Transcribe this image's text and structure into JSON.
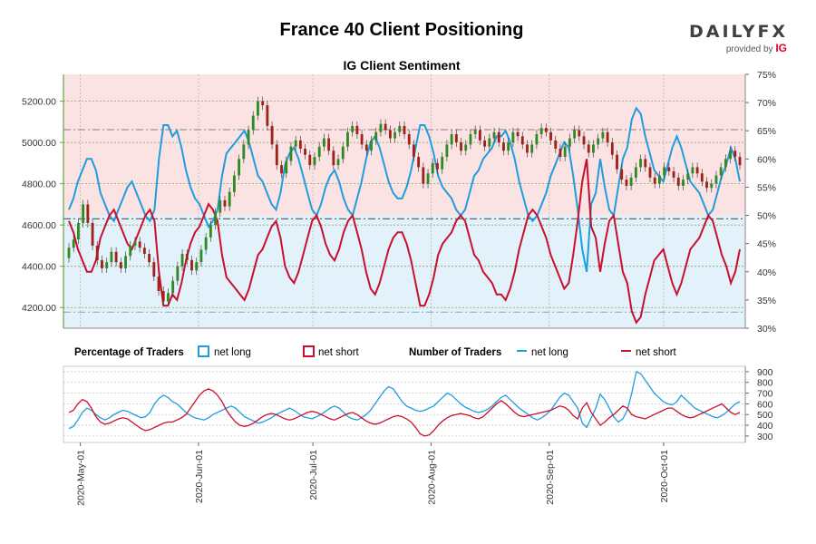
{
  "title": "France 40 Client Positioning",
  "subtitle": "IG Client Sentiment",
  "brand": {
    "name": "DAILYFX",
    "tagline": "provided by",
    "provider": "IG"
  },
  "colors": {
    "long": "#1e9de0",
    "short": "#c8102e",
    "long_fill": "#e3f1fa",
    "short_fill": "#fbe3e3",
    "candle_up": "#2e8b22",
    "candle_down": "#a0211c",
    "grid": "#7fae5a",
    "axis": "#6ca04a"
  },
  "legend": {
    "pct_label": "Percentage of Traders",
    "pct_long": "net long",
    "pct_short": "net short",
    "num_label": "Number of Traders",
    "num_long": "net long",
    "num_short": "net short"
  },
  "chart_data": {
    "type": "line",
    "x_start": "2020-04-28",
    "x_end": "2020-10-21",
    "x_ticks": [
      "2020-May-01",
      "2020-Jun-01",
      "2020-Jul-01",
      "2020-Aug-01",
      "2020-Sep-01",
      "2020-Oct-01"
    ],
    "price": {
      "ylim": [
        4100,
        5330
      ],
      "ticks": [
        "5200.00",
        "5000.00",
        "4800.00",
        "4600.00",
        "4400.00",
        "4200.00"
      ],
      "tick_values": [
        5200,
        5000,
        4800,
        4600,
        4400,
        4200
      ],
      "level_line": 4630,
      "upper_line": 5062,
      "lower_line": 4178
    },
    "sentiment": {
      "ylim": [
        30,
        75
      ],
      "ticks": [
        "75%",
        "70%",
        "65%",
        "60%",
        "55%",
        "50%",
        "45%",
        "40%",
        "35%",
        "30%"
      ],
      "tick_values": [
        75,
        70,
        65,
        60,
        55,
        50,
        45,
        40,
        35,
        30
      ]
    },
    "traders": {
      "ylim": [
        240,
        950
      ],
      "ticks": [
        "900",
        "800",
        "700",
        "600",
        "500",
        "400",
        "300"
      ],
      "tick_values": [
        900,
        800,
        700,
        600,
        500,
        400,
        300
      ]
    },
    "candles": [
      [
        4440,
        4490
      ],
      [
        4490,
        4530
      ],
      [
        4530,
        4610
      ],
      [
        4610,
        4700
      ],
      [
        4700,
        4610
      ],
      [
        4610,
        4500
      ],
      [
        4500,
        4430
      ],
      [
        4430,
        4390
      ],
      [
        4390,
        4420
      ],
      [
        4420,
        4470
      ],
      [
        4470,
        4420
      ],
      [
        4420,
        4390
      ],
      [
        4390,
        4450
      ],
      [
        4450,
        4500
      ],
      [
        4500,
        4520
      ],
      [
        4520,
        4490
      ],
      [
        4490,
        4460
      ],
      [
        4460,
        4420
      ],
      [
        4420,
        4350
      ],
      [
        4350,
        4280
      ],
      [
        4280,
        4230
      ],
      [
        4230,
        4270
      ],
      [
        4270,
        4330
      ],
      [
        4330,
        4400
      ],
      [
        4400,
        4460
      ],
      [
        4460,
        4430
      ],
      [
        4430,
        4380
      ],
      [
        4380,
        4420
      ],
      [
        4420,
        4480
      ],
      [
        4480,
        4540
      ],
      [
        4540,
        4600
      ],
      [
        4600,
        4660
      ],
      [
        4660,
        4720
      ],
      [
        4720,
        4690
      ],
      [
        4690,
        4760
      ],
      [
        4760,
        4840
      ],
      [
        4840,
        4920
      ],
      [
        4920,
        4990
      ],
      [
        4990,
        5060
      ],
      [
        5060,
        5130
      ],
      [
        5130,
        5200
      ],
      [
        5200,
        5180
      ],
      [
        5180,
        5080
      ],
      [
        5080,
        4990
      ],
      [
        4990,
        4890
      ],
      [
        4890,
        4850
      ],
      [
        4850,
        4910
      ],
      [
        4910,
        4980
      ],
      [
        4980,
        5010
      ],
      [
        5010,
        4970
      ],
      [
        4970,
        4940
      ],
      [
        4940,
        4890
      ],
      [
        4890,
        4930
      ],
      [
        4930,
        4980
      ],
      [
        4980,
        5020
      ],
      [
        5020,
        4960
      ],
      [
        4960,
        4890
      ],
      [
        4890,
        4920
      ],
      [
        4920,
        4980
      ],
      [
        4980,
        5050
      ],
      [
        5050,
        5080
      ],
      [
        5080,
        5040
      ],
      [
        5040,
        4990
      ],
      [
        4990,
        4960
      ],
      [
        4960,
        5010
      ],
      [
        5010,
        5050
      ],
      [
        5050,
        5090
      ],
      [
        5090,
        5060
      ],
      [
        5060,
        5020
      ],
      [
        5020,
        5050
      ],
      [
        5050,
        5080
      ],
      [
        5080,
        5040
      ],
      [
        5040,
        4990
      ],
      [
        4990,
        4930
      ],
      [
        4930,
        4880
      ],
      [
        4880,
        4800
      ],
      [
        4800,
        4850
      ],
      [
        4850,
        4900
      ],
      [
        4900,
        4870
      ],
      [
        4870,
        4930
      ],
      [
        4930,
        4990
      ],
      [
        4990,
        5040
      ],
      [
        5040,
        5000
      ],
      [
        5000,
        4960
      ],
      [
        4960,
        4990
      ],
      [
        4990,
        5040
      ],
      [
        5040,
        5060
      ],
      [
        5060,
        5010
      ],
      [
        5010,
        4980
      ],
      [
        4980,
        5020
      ],
      [
        5020,
        5050
      ],
      [
        5050,
        5000
      ],
      [
        5000,
        4960
      ],
      [
        4960,
        5000
      ],
      [
        5000,
        5050
      ],
      [
        5050,
        5030
      ],
      [
        5030,
        4990
      ],
      [
        4990,
        4950
      ],
      [
        4950,
        4990
      ],
      [
        4990,
        5040
      ],
      [
        5040,
        5070
      ],
      [
        5070,
        5050
      ],
      [
        5050,
        5010
      ],
      [
        5010,
        4970
      ],
      [
        4970,
        4930
      ],
      [
        4930,
        4980
      ],
      [
        4980,
        5020
      ],
      [
        5020,
        5060
      ],
      [
        5060,
        5030
      ],
      [
        5030,
        4990
      ],
      [
        4990,
        4950
      ],
      [
        4950,
        4990
      ],
      [
        4990,
        5020
      ],
      [
        5020,
        5050
      ],
      [
        5050,
        5000
      ],
      [
        5000,
        4940
      ],
      [
        4940,
        4870
      ],
      [
        4870,
        4820
      ],
      [
        4820,
        4790
      ],
      [
        4790,
        4830
      ],
      [
        4830,
        4880
      ],
      [
        4880,
        4920
      ],
      [
        4920,
        4880
      ],
      [
        4880,
        4830
      ],
      [
        4830,
        4800
      ],
      [
        4800,
        4840
      ],
      [
        4840,
        4880
      ],
      [
        4880,
        4860
      ],
      [
        4860,
        4830
      ],
      [
        4830,
        4790
      ],
      [
        4790,
        4820
      ],
      [
        4820,
        4850
      ],
      [
        4850,
        4880
      ],
      [
        4880,
        4850
      ],
      [
        4850,
        4810
      ],
      [
        4810,
        4780
      ],
      [
        4780,
        4800
      ],
      [
        4800,
        4840
      ],
      [
        4840,
        4880
      ],
      [
        4880,
        4920
      ],
      [
        4920,
        4960
      ],
      [
        4960,
        4930
      ],
      [
        4930,
        4890
      ]
    ],
    "series": [
      {
        "name": "net long %",
        "values": [
          51,
          53,
          56,
          58,
          60,
          60,
          58,
          54,
          52,
          50,
          49,
          51,
          53,
          55,
          56,
          54,
          52,
          50,
          49,
          51,
          60,
          66,
          66,
          64,
          65,
          62,
          58,
          55,
          53,
          52,
          50,
          48,
          49,
          51,
          57,
          61,
          62,
          63,
          64,
          65,
          63,
          60,
          57,
          56,
          54,
          52,
          51,
          54,
          59,
          61,
          62,
          60,
          57,
          54,
          51,
          50,
          52,
          55,
          57,
          58,
          56,
          53,
          51,
          50,
          53,
          56,
          60,
          63,
          64,
          62,
          59,
          56,
          54,
          53,
          53,
          55,
          58,
          62,
          66,
          66,
          64,
          61,
          57,
          55,
          54,
          53,
          51,
          50,
          51,
          54,
          57,
          58,
          60,
          61,
          62,
          64,
          64,
          65,
          63,
          60,
          56,
          53,
          50,
          49,
          50,
          52,
          54,
          57,
          59,
          61,
          63,
          62,
          57,
          51,
          44,
          40,
          52,
          54,
          60,
          55,
          51,
          50,
          55,
          60,
          62,
          67,
          69,
          68,
          64,
          61,
          58,
          57,
          56,
          59,
          62,
          64,
          62,
          59,
          56,
          55,
          54,
          52,
          50,
          51,
          54,
          57,
          59,
          62,
          60,
          56
        ]
      },
      {
        "name": "net short %",
        "values": [
          49,
          47,
          44,
          42,
          40,
          40,
          42,
          46,
          48,
          50,
          51,
          49,
          47,
          45,
          44,
          46,
          48,
          50,
          51,
          49,
          40,
          34,
          34,
          36,
          35,
          38,
          42,
          45,
          47,
          48,
          50,
          52,
          51,
          49,
          43,
          39,
          38,
          37,
          36,
          35,
          37,
          40,
          43,
          44,
          46,
          48,
          49,
          46,
          41,
          39,
          38,
          40,
          43,
          46,
          49,
          50,
          48,
          45,
          43,
          42,
          44,
          47,
          49,
          50,
          47,
          44,
          40,
          37,
          36,
          38,
          41,
          44,
          46,
          47,
          47,
          45,
          42,
          38,
          34,
          34,
          36,
          39,
          43,
          45,
          46,
          47,
          49,
          50,
          49,
          46,
          43,
          42,
          40,
          39,
          38,
          36,
          36,
          35,
          37,
          40,
          44,
          47,
          50,
          51,
          50,
          48,
          46,
          43,
          41,
          39,
          37,
          38,
          43,
          49,
          56,
          60,
          48,
          46,
          40,
          45,
          49,
          50,
          45,
          40,
          38,
          33,
          31,
          32,
          36,
          39,
          42,
          43,
          44,
          41,
          38,
          36,
          38,
          41,
          44,
          45,
          46,
          48,
          50,
          49,
          46,
          43,
          41,
          38,
          40,
          44
        ]
      },
      {
        "name": "net long traders",
        "values": [
          370,
          390,
          450,
          520,
          560,
          540,
          500,
          470,
          450,
          470,
          500,
          520,
          540,
          530,
          510,
          490,
          470,
          480,
          520,
          600,
          650,
          680,
          660,
          620,
          600,
          560,
          520,
          490,
          470,
          460,
          450,
          470,
          500,
          520,
          540,
          560,
          580,
          560,
          520,
          480,
          460,
          440,
          420,
          430,
          450,
          470,
          500,
          520,
          540,
          560,
          540,
          510,
          480,
          470,
          460,
          480,
          500,
          530,
          560,
          580,
          560,
          520,
          480,
          460,
          450,
          470,
          500,
          540,
          600,
          660,
          720,
          760,
          740,
          680,
          620,
          580,
          560,
          540,
          530,
          540,
          560,
          580,
          620,
          660,
          700,
          680,
          640,
          600,
          570,
          550,
          530,
          520,
          530,
          550,
          580,
          620,
          660,
          680,
          640,
          600,
          560,
          530,
          500,
          470,
          450,
          470,
          500,
          540,
          600,
          660,
          700,
          680,
          620,
          560,
          420,
          380,
          470,
          560,
          690,
          640,
          560,
          480,
          430,
          460,
          540,
          700,
          900,
          880,
          820,
          760,
          700,
          660,
          620,
          600,
          590,
          620,
          680,
          640,
          600,
          560,
          540,
          520,
          500,
          480,
          470,
          490,
          520,
          560,
          600,
          620
        ]
      },
      {
        "name": "net short traders",
        "values": [
          520,
          540,
          600,
          640,
          620,
          560,
          480,
          430,
          410,
          420,
          440,
          460,
          470,
          460,
          430,
          400,
          370,
          350,
          360,
          380,
          400,
          420,
          430,
          430,
          450,
          470,
          500,
          560,
          620,
          680,
          720,
          740,
          720,
          680,
          620,
          540,
          480,
          430,
          400,
          390,
          400,
          420,
          450,
          480,
          500,
          510,
          500,
          480,
          460,
          450,
          460,
          480,
          500,
          520,
          530,
          520,
          500,
          480,
          460,
          450,
          470,
          490,
          510,
          520,
          500,
          470,
          440,
          420,
          410,
          420,
          440,
          460,
          480,
          490,
          480,
          460,
          430,
          380,
          320,
          300,
          310,
          350,
          400,
          440,
          470,
          490,
          500,
          510,
          500,
          490,
          470,
          460,
          480,
          520,
          560,
          600,
          630,
          600,
          560,
          520,
          490,
          480,
          490,
          500,
          510,
          520,
          530,
          540,
          560,
          580,
          570,
          540,
          490,
          460,
          560,
          610,
          520,
          460,
          400,
          430,
          470,
          500,
          540,
          580,
          560,
          500,
          480,
          470,
          460,
          480,
          500,
          520,
          540,
          560,
          560,
          530,
          500,
          480,
          470,
          480,
          500,
          520,
          540,
          560,
          580,
          600,
          560,
          520,
          500,
          520
        ]
      }
    ]
  }
}
